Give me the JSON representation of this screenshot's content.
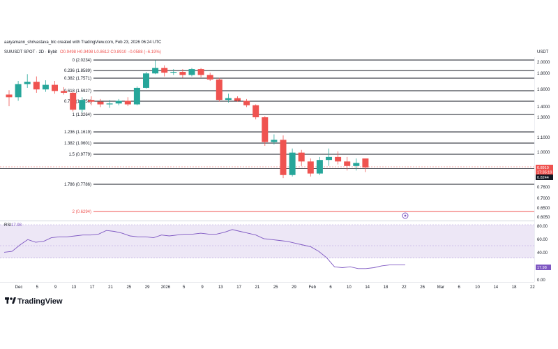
{
  "header": {
    "author_line": "aaryamann_shrivastava_blc created with TradingView.com, Feb 23, 2026 06:24 UTC",
    "symbol": "SUIUSDT SPOT · 2D · Bybit",
    "ohlc": "O0.9498 H0.9498 L0.8612 C0.8910 −0.0588 (−6.19%)",
    "currency": "USDT"
  },
  "colors": {
    "up": "#26a69a",
    "down": "#ef5350",
    "fib_line": "#131722",
    "fib_2_line": "#ef5350",
    "rsi_line": "#7e57c2",
    "rsi_band": "#ede7f6",
    "price_tag_bg": "#ef5350",
    "bid_tag_bg": "#131722",
    "rsi_tag_bg": "#7e57c2"
  },
  "fib_levels": [
    {
      "label": "0 (2.0234)",
      "price": 2.0234
    },
    {
      "label": "0.236 (1.8589)",
      "price": 1.8589
    },
    {
      "label": "0.382 (1.7571)",
      "price": 1.7571
    },
    {
      "label": "0.618 (1.5927)",
      "price": 1.5927
    },
    {
      "label": "0.786 (1.4756)",
      "price": 1.4756
    },
    {
      "label": "1 (1.3264)",
      "price": 1.3264
    },
    {
      "label": "1.236 (1.1619)",
      "price": 1.1619
    },
    {
      "label": "1.382 (1.0601)",
      "price": 1.0601
    },
    {
      "label": "1.5 (0.9779)",
      "price": 0.9779
    },
    {
      "label": "1.786 (0.7786)",
      "price": 0.7786
    },
    {
      "label": "2 (0.6294)",
      "price": 0.6294
    }
  ],
  "price_axis": {
    "ticks": [
      {
        "label": "2.0000",
        "value": 2.0
      },
      {
        "label": "1.8000",
        "value": 1.8
      },
      {
        "label": "1.6000",
        "value": 1.6
      },
      {
        "label": "1.4000",
        "value": 1.4
      },
      {
        "label": "1.3000",
        "value": 1.3
      },
      {
        "label": "1.1000",
        "value": 1.1
      },
      {
        "label": "1.0000",
        "value": 1.0
      },
      {
        "label": "0.9000",
        "value": 0.9
      },
      {
        "label": "0.7600",
        "value": 0.76
      },
      {
        "label": "0.7000",
        "value": 0.7
      },
      {
        "label": "0.6500",
        "value": 0.65
      },
      {
        "label": "0.6050",
        "value": 0.605
      }
    ],
    "current_price_tag": "0.8910",
    "countdown_tag": "17:35:19",
    "bid_tag": "0.8244",
    "current_price": 0.891,
    "bid_price": 0.8244
  },
  "time_axis": {
    "labels": [
      "Dec",
      "5",
      "9",
      "13",
      "17",
      "21",
      "25",
      "29",
      "2026",
      "5",
      "9",
      "13",
      "17",
      "21",
      "25",
      "29",
      "Feb",
      "6",
      "10",
      "14",
      "18",
      "22",
      "26",
      "Mar",
      "6",
      "10",
      "14",
      "18",
      "22"
    ]
  },
  "rsi": {
    "label": "RSI",
    "value_text": "17.98",
    "value": 17.98,
    "ticks": [
      {
        "label": "80.00",
        "value": 80
      },
      {
        "label": "60.00",
        "value": 60
      },
      {
        "label": "40.00",
        "value": 40
      },
      {
        "label": "0.00",
        "value": 0
      }
    ],
    "band": [
      30,
      70
    ],
    "values": [
      32,
      33,
      40,
      46,
      43,
      44,
      48,
      49,
      49,
      50,
      51,
      51,
      52,
      56,
      55,
      53,
      50,
      49,
      49,
      48,
      51,
      50,
      51,
      52,
      52,
      53,
      52,
      52,
      54,
      57,
      55,
      53,
      51,
      47,
      46,
      45,
      44,
      42,
      40,
      38,
      33,
      26,
      16,
      15,
      16,
      14,
      14,
      15,
      17,
      18,
      18,
      18
    ]
  },
  "chart_data": {
    "type": "candlestick",
    "candles": [
      {
        "o": 1.55,
        "h": 1.6,
        "l": 1.42,
        "c": 1.52
      },
      {
        "o": 1.52,
        "h": 1.72,
        "l": 1.48,
        "c": 1.68
      },
      {
        "o": 1.68,
        "h": 1.81,
        "l": 1.63,
        "c": 1.71
      },
      {
        "o": 1.71,
        "h": 1.78,
        "l": 1.57,
        "c": 1.61
      },
      {
        "o": 1.61,
        "h": 1.73,
        "l": 1.58,
        "c": 1.67
      },
      {
        "o": 1.67,
        "h": 1.72,
        "l": 1.56,
        "c": 1.59
      },
      {
        "o": 1.59,
        "h": 1.64,
        "l": 1.55,
        "c": 1.57
      },
      {
        "o": 1.57,
        "h": 1.58,
        "l": 1.36,
        "c": 1.38
      },
      {
        "o": 1.38,
        "h": 1.52,
        "l": 1.35,
        "c": 1.49
      },
      {
        "o": 1.49,
        "h": 1.53,
        "l": 1.43,
        "c": 1.47
      },
      {
        "o": 1.47,
        "h": 1.5,
        "l": 1.41,
        "c": 1.44
      },
      {
        "o": 1.44,
        "h": 1.49,
        "l": 1.4,
        "c": 1.45
      },
      {
        "o": 1.45,
        "h": 1.5,
        "l": 1.43,
        "c": 1.48
      },
      {
        "o": 1.48,
        "h": 1.52,
        "l": 1.42,
        "c": 1.44
      },
      {
        "o": 1.44,
        "h": 1.65,
        "l": 1.43,
        "c": 1.63
      },
      {
        "o": 1.63,
        "h": 1.84,
        "l": 1.62,
        "c": 1.82
      },
      {
        "o": 1.82,
        "h": 2.02,
        "l": 1.81,
        "c": 1.9
      },
      {
        "o": 1.9,
        "h": 1.94,
        "l": 1.78,
        "c": 1.83
      },
      {
        "o": 1.83,
        "h": 1.88,
        "l": 1.8,
        "c": 1.84
      },
      {
        "o": 1.84,
        "h": 1.88,
        "l": 1.76,
        "c": 1.8
      },
      {
        "o": 1.8,
        "h": 1.9,
        "l": 1.78,
        "c": 1.88
      },
      {
        "o": 1.88,
        "h": 1.9,
        "l": 1.77,
        "c": 1.8
      },
      {
        "o": 1.8,
        "h": 1.83,
        "l": 1.72,
        "c": 1.74
      },
      {
        "o": 1.74,
        "h": 1.76,
        "l": 1.47,
        "c": 1.49
      },
      {
        "o": 1.49,
        "h": 1.56,
        "l": 1.46,
        "c": 1.51
      },
      {
        "o": 1.51,
        "h": 1.53,
        "l": 1.47,
        "c": 1.48
      },
      {
        "o": 1.48,
        "h": 1.5,
        "l": 1.41,
        "c": 1.43
      },
      {
        "o": 1.43,
        "h": 1.44,
        "l": 1.28,
        "c": 1.3
      },
      {
        "o": 1.3,
        "h": 1.31,
        "l": 1.04,
        "c": 1.07
      },
      {
        "o": 1.07,
        "h": 1.14,
        "l": 1.05,
        "c": 1.09
      },
      {
        "o": 1.09,
        "h": 1.13,
        "l": 0.82,
        "c": 0.84
      },
      {
        "o": 0.84,
        "h": 1.02,
        "l": 0.83,
        "c": 0.99
      },
      {
        "o": 0.99,
        "h": 1.01,
        "l": 0.9,
        "c": 0.93
      },
      {
        "o": 0.93,
        "h": 0.95,
        "l": 0.83,
        "c": 0.85
      },
      {
        "o": 0.85,
        "h": 0.96,
        "l": 0.84,
        "c": 0.94
      },
      {
        "o": 0.94,
        "h": 1.02,
        "l": 0.9,
        "c": 0.96
      },
      {
        "o": 0.96,
        "h": 1.0,
        "l": 0.91,
        "c": 0.93
      },
      {
        "o": 0.93,
        "h": 0.96,
        "l": 0.87,
        "c": 0.9
      },
      {
        "o": 0.9,
        "h": 0.95,
        "l": 0.87,
        "c": 0.92
      },
      {
        "o": 0.95,
        "h": 0.95,
        "l": 0.86,
        "c": 0.89
      }
    ],
    "price_range": [
      0.59,
      2.09
    ]
  }
}
